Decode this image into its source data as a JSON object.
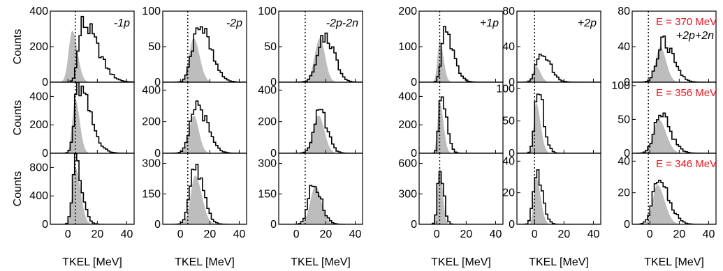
{
  "chart_data": {
    "type": "histogram-grid",
    "xlabel": "TKEL [MeV]",
    "ylabel": "Counts",
    "xlim": [
      -12,
      45
    ],
    "xticks": [
      0,
      20,
      40
    ],
    "xtick_labels": [
      "0",
      "20",
      "40"
    ],
    "grid": false,
    "colors": {
      "experiment": "#000000",
      "simulation": "#bdbdbd",
      "energy_label": "#e8141c"
    },
    "series_description": [
      "experiment-histogram",
      "simulation-filled"
    ],
    "columns": [
      {
        "tag": "-1p",
        "ref_x": 5,
        "ymax": [
          400,
          500,
          1000
        ],
        "yticks": [
          [
            0,
            200,
            400
          ],
          [
            0,
            200,
            400
          ],
          [
            0,
            400,
            800
          ]
        ]
      },
      {
        "tag": "-2p",
        "ref_x": 5,
        "ymax": [
          100,
          450,
          350
        ],
        "yticks": [
          [
            0,
            50,
            100
          ],
          [
            0,
            200,
            400
          ],
          [
            0,
            150,
            300
          ]
        ]
      },
      {
        "tag": "-2p-2n",
        "ref_x": 6,
        "ymax": [
          100,
          450,
          350
        ],
        "yticks": [
          [
            0,
            50,
            100
          ],
          [
            0,
            200,
            400
          ],
          [
            0,
            150,
            300
          ]
        ]
      },
      {
        "tag": "+1p",
        "ref_x": 2,
        "ymax": [
          200,
          500,
          700
        ],
        "yticks": [
          [
            0,
            100,
            200
          ],
          [
            0,
            200,
            400
          ],
          [
            0,
            300,
            600
          ]
        ]
      },
      {
        "tag": "+2p",
        "ref_x": 0,
        "ymax": [
          80,
          110,
          45
        ],
        "yticks": [
          [
            0,
            40,
            80
          ],
          [
            0,
            50,
            100
          ],
          [
            0,
            20,
            40
          ]
        ]
      },
      {
        "tag": "+2p+2n",
        "ref_x": -1,
        "ymax": [
          80,
          105,
          45
        ],
        "yticks": [
          [
            0,
            40,
            80
          ],
          [
            0,
            50,
            100
          ],
          [
            0,
            20,
            40
          ]
        ]
      }
    ],
    "energies": [
      "E = 370 MeV",
      "E = 356 MeV",
      "E = 346 MeV"
    ],
    "panels": [
      {
        "col": 0,
        "row": 0,
        "exp": {
          "mu": 10,
          "sl": 2.8,
          "sr": 10,
          "peak": 330
        },
        "sim": {
          "mu": 3,
          "sl": 2.5,
          "sr": 3.5,
          "peak": 290
        }
      },
      {
        "col": 0,
        "row": 1,
        "exp": {
          "mu": 7,
          "sl": 2.5,
          "sr": 8,
          "peak": 460
        },
        "sim": {
          "mu": 5,
          "sl": 2,
          "sr": 3,
          "peak": 380
        }
      },
      {
        "col": 0,
        "row": 2,
        "exp": {
          "mu": 5,
          "sl": 2,
          "sr": 4.5,
          "peak": 920
        },
        "sim": {
          "mu": 5,
          "sl": 2,
          "sr": 3.5,
          "peak": 800
        }
      },
      {
        "col": 1,
        "row": 0,
        "exp": {
          "mu": 12,
          "sl": 4,
          "sr": 8,
          "peak": 82
        },
        "sim": {
          "mu": 9,
          "sl": 3,
          "sr": 4,
          "peak": 62
        }
      },
      {
        "col": 1,
        "row": 1,
        "exp": {
          "mu": 11,
          "sl": 4,
          "sr": 7,
          "peak": 310
        },
        "sim": {
          "mu": 9,
          "sl": 3,
          "sr": 3.5,
          "peak": 240
        }
      },
      {
        "col": 1,
        "row": 2,
        "exp": {
          "mu": 10,
          "sl": 3.5,
          "sr": 5.5,
          "peak": 270
        },
        "sim": {
          "mu": 10,
          "sl": 3,
          "sr": 4.5,
          "peak": 240
        }
      },
      {
        "col": 2,
        "row": 0,
        "exp": {
          "mu": 20,
          "sl": 5,
          "sr": 6,
          "peak": 65
        },
        "sim": {
          "mu": 16,
          "sl": 3.5,
          "sr": 3.5,
          "peak": 62
        }
      },
      {
        "col": 2,
        "row": 1,
        "exp": {
          "mu": 16,
          "sl": 4,
          "sr": 5,
          "peak": 255
        },
        "sim": {
          "mu": 15,
          "sl": 3.5,
          "sr": 4,
          "peak": 240
        }
      },
      {
        "col": 2,
        "row": 2,
        "exp": {
          "mu": 12,
          "sl": 3.5,
          "sr": 5,
          "peak": 200
        },
        "sim": {
          "mu": 13,
          "sl": 3.5,
          "sr": 4,
          "peak": 190
        }
      },
      {
        "col": 3,
        "row": 0,
        "exp": {
          "mu": 5,
          "sl": 2,
          "sr": 6,
          "peak": 140
        },
        "sim": {
          "mu": 2,
          "sl": 1.5,
          "sr": 2.5,
          "peak": 118
        }
      },
      {
        "col": 3,
        "row": 1,
        "exp": {
          "mu": 3,
          "sl": 1.5,
          "sr": 3.5,
          "peak": 405
        },
        "sim": {
          "mu": 2,
          "sl": 1.5,
          "sr": 2.5,
          "peak": 360
        }
      },
      {
        "col": 3,
        "row": 2,
        "exp": {
          "mu": 2,
          "sl": 1.5,
          "sr": 2.5,
          "peak": 590
        },
        "sim": {
          "mu": 2,
          "sl": 1.5,
          "sr": 2,
          "peak": 560
        }
      },
      {
        "col": 4,
        "row": 0,
        "exp": {
          "mu": 4,
          "sl": 3,
          "sr": 6,
          "peak": 36
        },
        "sim": {
          "mu": 1,
          "sl": 2,
          "sr": 3,
          "peak": 18
        }
      },
      {
        "col": 4,
        "row": 1,
        "exp": {
          "mu": 2,
          "sl": 2,
          "sr": 4,
          "peak": 100
        },
        "sim": {
          "mu": 1,
          "sl": 1.5,
          "sr": 3,
          "peak": 78
        }
      },
      {
        "col": 4,
        "row": 2,
        "exp": {
          "mu": 1,
          "sl": 2,
          "sr": 4,
          "peak": 36
        },
        "sim": {
          "mu": 1,
          "sl": 1.5,
          "sr": 3,
          "peak": 30
        }
      },
      {
        "col": 5,
        "row": 0,
        "exp": {
          "mu": 9,
          "sl": 4,
          "sr": 7,
          "peak": 45
        },
        "sim": {
          "mu": 7,
          "sl": 3,
          "sr": 4,
          "peak": 40
        }
      },
      {
        "col": 5,
        "row": 1,
        "exp": {
          "mu": 7,
          "sl": 4,
          "sr": 7,
          "peak": 55
        },
        "sim": {
          "mu": 6,
          "sl": 3.5,
          "sr": 5,
          "peak": 50
        }
      },
      {
        "col": 5,
        "row": 2,
        "exp": {
          "mu": 6,
          "sl": 4,
          "sr": 7,
          "peak": 28
        },
        "sim": {
          "mu": 5,
          "sl": 3,
          "sr": 5,
          "peak": 25
        }
      }
    ]
  }
}
